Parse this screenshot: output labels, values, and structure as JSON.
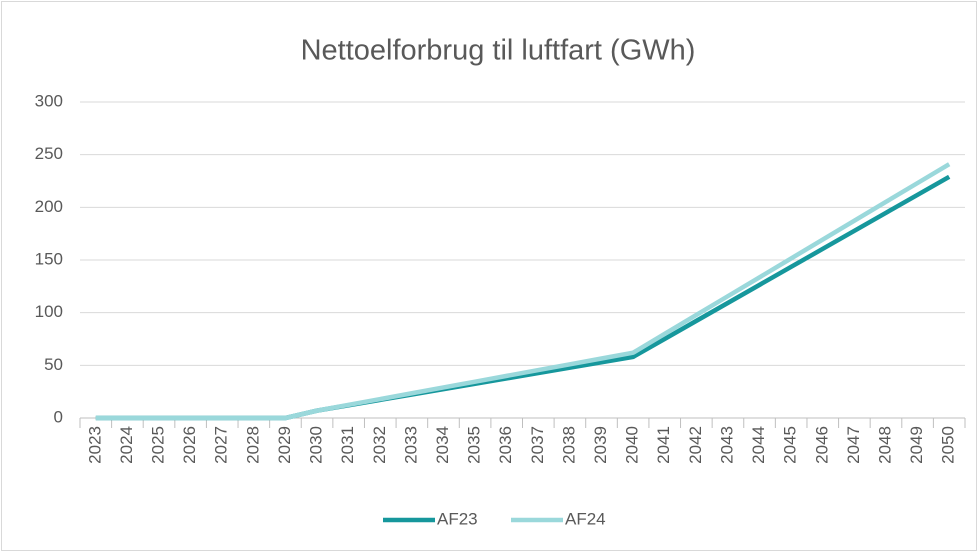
{
  "chart_data": {
    "type": "line",
    "title": "Nettoelforbrug til luftfart (GWh)",
    "categories": [
      "2023",
      "2024",
      "2025",
      "2026",
      "2027",
      "2028",
      "2029",
      "2030",
      "2031",
      "2032",
      "2033",
      "2034",
      "2035",
      "2036",
      "2037",
      "2038",
      "2039",
      "2040",
      "2041",
      "2042",
      "2043",
      "2044",
      "2045",
      "2046",
      "2047",
      "2048",
      "2049",
      "2050"
    ],
    "series": [
      {
        "name": "AF23",
        "color": "#16979c",
        "values": [
          0,
          0,
          0,
          0,
          0,
          0,
          0,
          7,
          12.1,
          17.2,
          22.3,
          27.4,
          32.5,
          37.6,
          42.7,
          47.8,
          52.9,
          58,
          75.1,
          92.2,
          109.3,
          126.4,
          143.5,
          160.6,
          177.7,
          194.8,
          211.9,
          229
        ]
      },
      {
        "name": "AF24",
        "color": "#9ad8db",
        "values": [
          0,
          0,
          0,
          0,
          0,
          0,
          0,
          7,
          12.5,
          18,
          23.5,
          29,
          34.5,
          40,
          45.5,
          51,
          56.5,
          62,
          79.9,
          97.8,
          115.7,
          133.6,
          151.5,
          169.4,
          187.3,
          205.2,
          223.1,
          241
        ]
      }
    ],
    "ylim": [
      0,
      300
    ],
    "yticks": [
      0,
      50,
      100,
      150,
      200,
      250,
      300
    ],
    "grid": true,
    "legend": "bottom"
  }
}
